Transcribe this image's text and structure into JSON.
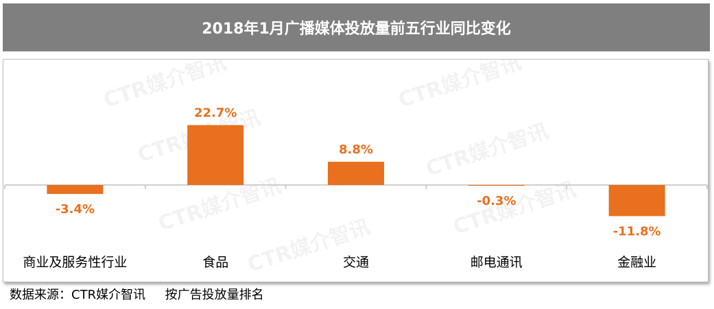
{
  "title": "2018年1月广播媒体投放量前五行业同比变化",
  "source": "数据来源：CTR媒介智讯     按广告投放量排名",
  "watermark": "CTR媒介智讯",
  "colors": {
    "bar": "#e8701e",
    "label": "#e8701e",
    "title_bg": "#7f7f7f",
    "axis": "#bfbfbf"
  },
  "chart_data": {
    "type": "bar",
    "title": "2018年1月广播媒体投放量前五行业同比变化",
    "categories": [
      "商业及服务性行业",
      "食品",
      "交通",
      "邮电通讯",
      "金融业"
    ],
    "values": [
      -3.4,
      22.7,
      8.8,
      -0.3,
      -11.8
    ],
    "data_labels": [
      "-3.4%",
      "22.7%",
      "8.8%",
      "-0.3%",
      "-11.8%"
    ],
    "xlabel": "",
    "ylabel": "",
    "grid": false,
    "legend": "none"
  }
}
